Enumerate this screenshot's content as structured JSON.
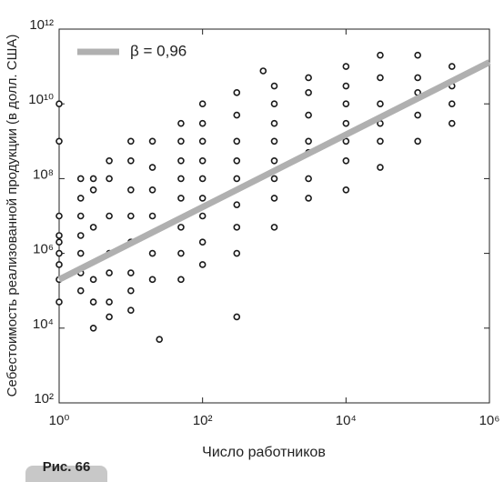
{
  "chart_data": {
    "type": "scatter",
    "xlabel": "Число работников",
    "ylabel": "Себестоимость реализованной продукции (в долл. США)",
    "caption": "Рис. 66",
    "xscale": "log",
    "yscale": "log",
    "xlim": [
      1,
      1000000
    ],
    "ylim": [
      100,
      1000000000000
    ],
    "xticks": [
      {
        "value": 1,
        "label": "10⁰"
      },
      {
        "value": 100,
        "label": "10²"
      },
      {
        "value": 10000,
        "label": "10⁴"
      },
      {
        "value": 1000000,
        "label": "10⁶"
      }
    ],
    "yticks": [
      {
        "value": 100,
        "label": "10²"
      },
      {
        "value": 10000,
        "label": "10⁴"
      },
      {
        "value": 1000000,
        "label": "10⁶"
      },
      {
        "value": 100000000,
        "label": "10⁸"
      },
      {
        "value": 10000000000,
        "label": "10¹⁰"
      },
      {
        "value": 1000000000000,
        "label": "10¹²"
      }
    ],
    "legend": "upper left",
    "series": [
      {
        "kind": "points",
        "color": "#1a1a1a",
        "x": [
          1,
          1,
          1,
          1,
          1,
          1,
          1,
          1,
          1,
          2,
          2,
          2,
          2,
          2,
          2,
          2,
          3,
          3,
          3,
          3,
          3,
          3,
          5,
          5,
          5,
          5,
          5,
          5,
          5,
          10,
          10,
          10,
          10,
          10,
          10,
          10,
          10,
          20,
          20,
          20,
          20,
          20,
          20,
          25,
          50,
          50,
          50,
          50,
          50,
          50,
          50,
          50,
          100,
          100,
          100,
          100,
          100,
          100,
          100,
          100,
          100,
          300,
          300,
          300,
          300,
          300,
          300,
          300,
          300,
          300,
          700,
          1000,
          1000,
          1000,
          1000,
          1000,
          1000,
          1000,
          1000,
          3000,
          3000,
          3000,
          3000,
          3000,
          3000,
          3000,
          10000,
          10000,
          10000,
          10000,
          10000,
          10000,
          10000,
          30000,
          30000,
          30000,
          30000,
          30000,
          30000,
          100000,
          100000,
          100000,
          100000,
          100000,
          300000,
          300000,
          300000,
          300000
        ],
        "values": [
          10000000000.0,
          1000000000.0,
          10000000.0,
          3000000.0,
          2000000.0,
          1000000.0,
          500000.0,
          200000.0,
          50000.0,
          100000000.0,
          30000000.0,
          10000000.0,
          3000000.0,
          1000000.0,
          300000.0,
          100000.0,
          100000000.0,
          50000000.0,
          5000000.0,
          200000.0,
          50000.0,
          10000.0,
          300000000.0,
          100000000.0,
          10000000.0,
          1000000.0,
          300000.0,
          50000.0,
          20000.0,
          1000000000.0,
          300000000.0,
          50000000.0,
          10000000.0,
          2000000.0,
          300000.0,
          100000.0,
          30000.0,
          1000000000.0,
          200000000.0,
          50000000.0,
          10000000.0,
          1000000.0,
          200000.0,
          5000.0,
          3000000000.0,
          1000000000.0,
          300000000.0,
          100000000.0,
          30000000.0,
          5000000.0,
          1000000.0,
          200000.0,
          10000000000.0,
          3000000000.0,
          1000000000.0,
          300000000.0,
          100000000.0,
          30000000.0,
          10000000.0,
          2000000.0,
          500000.0,
          20000000000.0,
          5000000000.0,
          1000000000.0,
          300000000.0,
          100000000.0,
          20000000.0,
          5000000.0,
          1000000.0,
          20000.0,
          76000000000.0,
          30000000000.0,
          10000000000.0,
          3000000000.0,
          1000000000.0,
          300000000.0,
          100000000.0,
          30000000.0,
          5000000.0,
          50000000000.0,
          20000000000.0,
          5000000000.0,
          1000000000.0,
          500000000.0,
          100000000.0,
          30000000.0,
          100000000000.0,
          30000000000.0,
          10000000000.0,
          3000000000.0,
          1000000000.0,
          300000000.0,
          50000000.0,
          200000000000.0,
          50000000000.0,
          10000000000.0,
          3000000000.0,
          1000000000.0,
          200000000.0,
          200000000000.0,
          50000000000.0,
          20000000000.0,
          5000000000.0,
          1000000000.0,
          100000000000.0,
          30000000000.0,
          10000000000.0,
          3000000000.0
        ]
      },
      {
        "kind": "line",
        "name": "β = 0,96",
        "color": "#b0b0b0",
        "x": [
          1,
          1000000
        ],
        "values": [
          200000,
          130000000000
        ]
      }
    ]
  }
}
